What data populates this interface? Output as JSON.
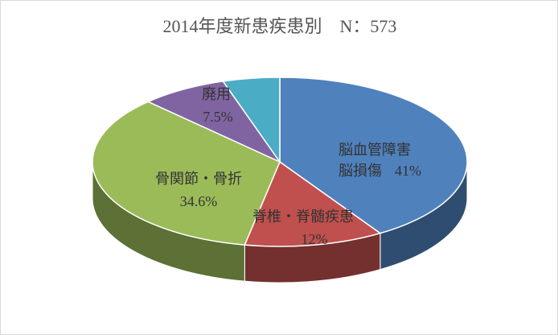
{
  "chart_data": {
    "type": "pie3d",
    "title": "2014年度新患疾患別　N：573",
    "categories": [
      "脳血管障害\n脳損傷",
      "脊椎・脊髄疾患",
      "骨関節・骨折",
      "廃用",
      null
    ],
    "values": [
      41,
      12,
      34.6,
      7.5,
      4.9
    ],
    "value_labels": [
      "41%",
      "12%",
      "34.6%",
      "7.5%",
      null
    ],
    "colors": [
      "#4f81bd",
      "#c0504d",
      "#9bbb59",
      "#8064a2",
      "#4bacc6"
    ]
  }
}
